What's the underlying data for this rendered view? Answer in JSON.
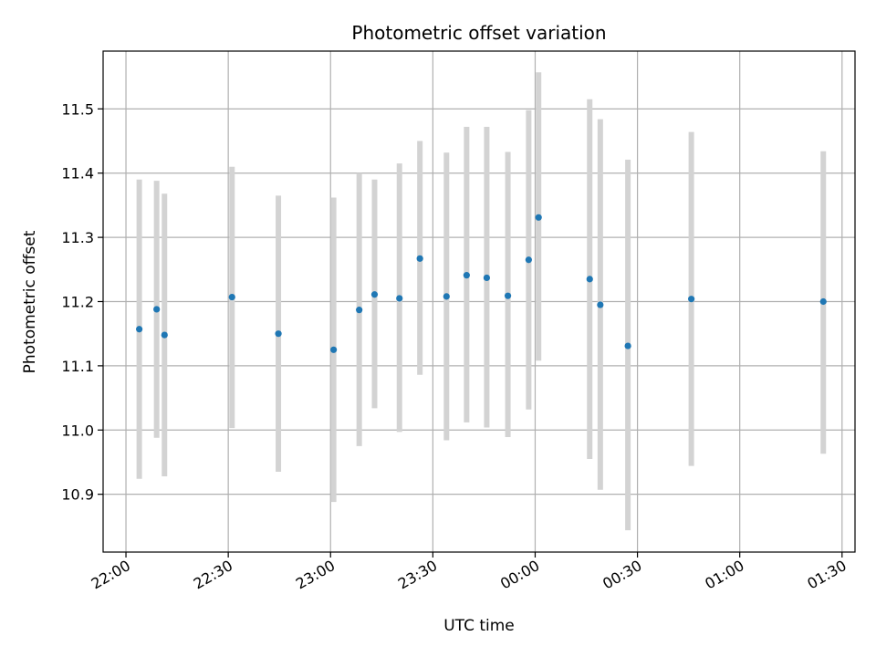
{
  "chart_data": {
    "type": "scatter",
    "title": "Photometric offset variation",
    "xlabel": "UTC time",
    "ylabel": "Photometric offset",
    "x_ticks": [
      {
        "label": "22:00",
        "minutes": 0
      },
      {
        "label": "22:30",
        "minutes": 30
      },
      {
        "label": "23:00",
        "minutes": 60
      },
      {
        "label": "23:30",
        "minutes": 90
      },
      {
        "label": "00:00",
        "minutes": 120
      },
      {
        "label": "00:30",
        "minutes": 150
      },
      {
        "label": "01:00",
        "minutes": 180
      },
      {
        "label": "01:30",
        "minutes": 210
      }
    ],
    "y_ticks": [
      "10.9",
      "11.0",
      "11.1",
      "11.2",
      "11.3",
      "11.4",
      "11.5"
    ],
    "xlim": [
      -6.7,
      213.8
    ],
    "ylim": [
      10.81,
      11.59
    ],
    "grid": true,
    "point_color": "#1f77b4",
    "errorbar_color": "#d3d3d3",
    "points": [
      {
        "x": 3.9,
        "y": 11.157,
        "lo": 10.924,
        "hi": 11.39
      },
      {
        "x": 9.0,
        "y": 11.188,
        "lo": 10.988,
        "hi": 11.388
      },
      {
        "x": 11.3,
        "y": 11.148,
        "lo": 10.928,
        "hi": 11.368
      },
      {
        "x": 31.1,
        "y": 11.207,
        "lo": 11.003,
        "hi": 11.41
      },
      {
        "x": 44.7,
        "y": 11.15,
        "lo": 10.935,
        "hi": 11.365
      },
      {
        "x": 60.9,
        "y": 11.125,
        "lo": 10.888,
        "hi": 11.362
      },
      {
        "x": 68.4,
        "y": 11.187,
        "lo": 10.975,
        "hi": 11.4
      },
      {
        "x": 72.9,
        "y": 11.211,
        "lo": 11.034,
        "hi": 11.39
      },
      {
        "x": 80.2,
        "y": 11.205,
        "lo": 10.997,
        "hi": 11.415
      },
      {
        "x": 86.2,
        "y": 11.267,
        "lo": 11.086,
        "hi": 11.45
      },
      {
        "x": 94.0,
        "y": 11.208,
        "lo": 10.984,
        "hi": 11.432
      },
      {
        "x": 99.9,
        "y": 11.241,
        "lo": 11.012,
        "hi": 11.472
      },
      {
        "x": 105.8,
        "y": 11.237,
        "lo": 11.004,
        "hi": 11.472
      },
      {
        "x": 112.0,
        "y": 11.209,
        "lo": 10.989,
        "hi": 11.433
      },
      {
        "x": 118.1,
        "y": 11.265,
        "lo": 11.032,
        "hi": 11.498
      },
      {
        "x": 121.0,
        "y": 11.331,
        "lo": 11.108,
        "hi": 11.557
      },
      {
        "x": 136.0,
        "y": 11.235,
        "lo": 10.955,
        "hi": 11.515
      },
      {
        "x": 139.1,
        "y": 11.195,
        "lo": 10.907,
        "hi": 11.484
      },
      {
        "x": 147.2,
        "y": 11.131,
        "lo": 10.844,
        "hi": 11.421
      },
      {
        "x": 165.8,
        "y": 11.204,
        "lo": 10.944,
        "hi": 11.464
      },
      {
        "x": 204.5,
        "y": 11.2,
        "lo": 10.963,
        "hi": 11.434
      }
    ]
  }
}
